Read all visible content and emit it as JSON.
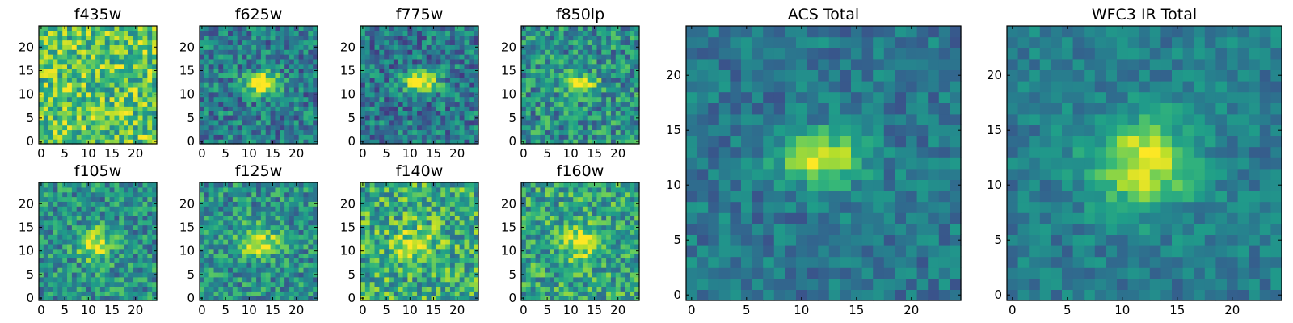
{
  "chart_data": {
    "type": "heatmap",
    "colormap": "viridis",
    "grid_size": 25,
    "axis_range": [
      0,
      24
    ],
    "panels": [
      {
        "title": "f435w",
        "x_ticks": [
          "0",
          "5",
          "10",
          "15",
          "20"
        ],
        "y_ticks": [
          "0",
          "5",
          "10",
          "15",
          "20"
        ],
        "source": {
          "cx": 12,
          "cy": 12,
          "sx": 2.5,
          "sy": 2.0,
          "amp": 0.0
        },
        "background": 0.72,
        "noise": 0.35
      },
      {
        "title": "f625w",
        "x_ticks": [
          "0",
          "5",
          "10",
          "15",
          "20"
        ],
        "y_ticks": [
          "0",
          "5",
          "10",
          "15",
          "20"
        ],
        "source": {
          "cx": 12.5,
          "cy": 12.5,
          "sx": 2.6,
          "sy": 1.5,
          "amp": 0.7
        },
        "background": 0.42,
        "noise": 0.3
      },
      {
        "title": "f775w",
        "x_ticks": [
          "0",
          "5",
          "10",
          "15",
          "20"
        ],
        "y_ticks": [
          "0",
          "5",
          "10",
          "15",
          "20"
        ],
        "source": {
          "cx": 12.5,
          "cy": 12.5,
          "sx": 2.4,
          "sy": 1.5,
          "amp": 0.65
        },
        "background": 0.4,
        "noise": 0.3
      },
      {
        "title": "f850lp",
        "x_ticks": [
          "0",
          "5",
          "10",
          "15",
          "20"
        ],
        "y_ticks": [
          "0",
          "5",
          "10",
          "15",
          "20"
        ],
        "source": {
          "cx": 12,
          "cy": 12,
          "sx": 2.4,
          "sy": 1.6,
          "amp": 0.5
        },
        "background": 0.5,
        "noise": 0.32
      },
      {
        "title": "f105w",
        "x_ticks": [
          "0",
          "5",
          "10",
          "15",
          "20"
        ],
        "y_ticks": [
          "0",
          "5",
          "10",
          "15",
          "20"
        ],
        "source": {
          "cx": 11.5,
          "cy": 11.5,
          "sx": 2.6,
          "sy": 2.4,
          "amp": 0.5
        },
        "background": 0.5,
        "noise": 0.3
      },
      {
        "title": "f125w",
        "x_ticks": [
          "0",
          "5",
          "10",
          "15",
          "20"
        ],
        "y_ticks": [
          "0",
          "5",
          "10",
          "15",
          "20"
        ],
        "source": {
          "cx": 12,
          "cy": 12,
          "sx": 3.0,
          "sy": 2.2,
          "amp": 0.45
        },
        "background": 0.5,
        "noise": 0.3
      },
      {
        "title": "f140w",
        "x_ticks": [
          "0",
          "5",
          "10",
          "15",
          "20"
        ],
        "y_ticks": [
          "0",
          "5",
          "10",
          "15",
          "20"
        ],
        "source": {
          "cx": 11,
          "cy": 11.5,
          "sx": 3.0,
          "sy": 2.4,
          "amp": 0.3
        },
        "background": 0.62,
        "noise": 0.35
      },
      {
        "title": "f160w",
        "x_ticks": [
          "0",
          "5",
          "10",
          "15",
          "20"
        ],
        "y_ticks": [
          "0",
          "5",
          "10",
          "15",
          "20"
        ],
        "source": {
          "cx": 12,
          "cy": 12,
          "sx": 3.0,
          "sy": 2.6,
          "amp": 0.35
        },
        "background": 0.58,
        "noise": 0.32
      },
      {
        "title": "ACS Total",
        "x_ticks": [
          "0",
          "5",
          "10",
          "15",
          "20"
        ],
        "y_ticks": [
          "0",
          "5",
          "10",
          "15",
          "20"
        ],
        "source": {
          "cx": 12,
          "cy": 12.5,
          "sx": 2.6,
          "sy": 1.6,
          "amp": 0.6
        },
        "background": 0.4,
        "noise": 0.18
      },
      {
        "title": "WFC3 IR Total",
        "x_ticks": [
          "0",
          "5",
          "10",
          "15",
          "20"
        ],
        "y_ticks": [
          "0",
          "5",
          "10",
          "15",
          "20"
        ],
        "source": {
          "cx": 12,
          "cy": 12,
          "sx": 3.2,
          "sy": 2.8,
          "amp": 0.55
        },
        "background": 0.42,
        "noise": 0.16
      }
    ]
  }
}
